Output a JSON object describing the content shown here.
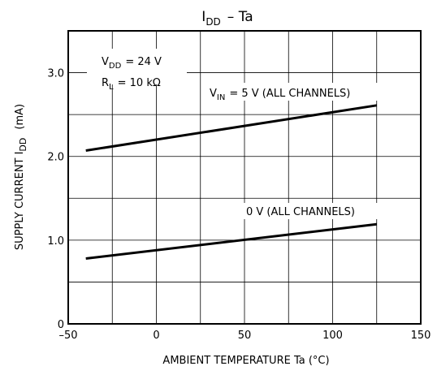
{
  "chart_data": {
    "type": "line",
    "title": "I",
    "title_sub": "DD",
    "title_rest": "– Ta",
    "xlabel": "AMBIENT TEMPERATURE   Ta   (°C)",
    "ylabel": "SUPPLY CURRENT   I",
    "ylabel_sub": "DD",
    "ylabel_unit": "(mA)",
    "xlim": [
      -50,
      150
    ],
    "ylim": [
      0,
      3.5
    ],
    "x_ticks": [
      -50,
      0,
      50,
      100,
      150
    ],
    "x_tick_labels": [
      "–50",
      "0",
      "50",
      "100",
      "150"
    ],
    "y_ticks": [
      0,
      1.0,
      2.0,
      3.0
    ],
    "y_tick_labels": [
      "0",
      "1.0",
      "2.0",
      "3.0"
    ],
    "grid": true,
    "conditions": {
      "vdd": {
        "main": "V",
        "sub": "DD",
        "rest": "= 24 V"
      },
      "rl": {
        "main": "R",
        "sub": "L",
        "rest": "= 10 kΩ"
      }
    },
    "series": [
      {
        "name": "VIN = 5 V (ALL CHANNELS)",
        "label_main": "V",
        "label_sub": "IN",
        "label_rest": "= 5 V  (ALL CHANNELS)",
        "x": [
          -40,
          125
        ],
        "y": [
          2.07,
          2.61
        ]
      },
      {
        "name": "0 V (ALL CHANNELS)",
        "label_main": "0 V  (ALL CHANNELS)",
        "label_sub": "",
        "label_rest": "",
        "x": [
          -40,
          125
        ],
        "y": [
          0.78,
          1.19
        ]
      }
    ]
  }
}
